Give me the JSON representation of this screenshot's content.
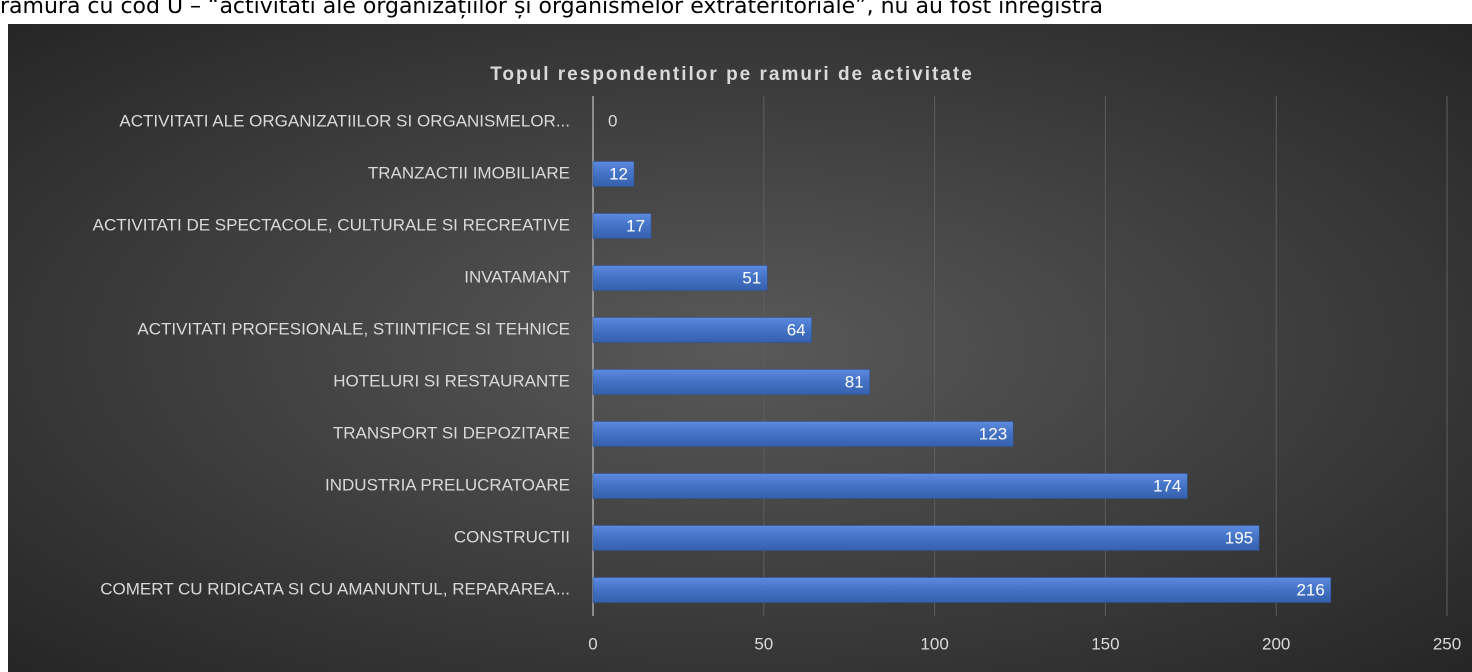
{
  "header": {
    "text": "ramura cu cod U – “activitati ale organizațiilor și organismelor extrateritoriale”, nu au fost înregistra"
  },
  "chart_data": {
    "type": "hbar",
    "title": "Topul respondentilor pe ramuri de activitate",
    "categories": [
      "ACTIVITATI ALE ORGANIZATIILOR SI ORGANISMELOR...",
      "TRANZACTII IMOBILIARE",
      "ACTIVITATI DE SPECTACOLE, CULTURALE SI RECREATIVE",
      "INVATAMANT",
      "ACTIVITATI PROFESIONALE, STIINTIFICE SI TEHNICE",
      "HOTELURI SI RESTAURANTE",
      "TRANSPORT SI DEPOZITARE",
      "INDUSTRIA PRELUCRATOARE",
      "CONSTRUCTII",
      "COMERT CU RIDICATA SI CU AMANUNTUL, REPARAREA..."
    ],
    "values": [
      0,
      12,
      17,
      51,
      64,
      81,
      123,
      174,
      195,
      216
    ],
    "color": "#4472c4",
    "xlim": [
      0,
      250
    ],
    "xticks": [
      0,
      50,
      100,
      150,
      200,
      250
    ],
    "grid": true
  }
}
